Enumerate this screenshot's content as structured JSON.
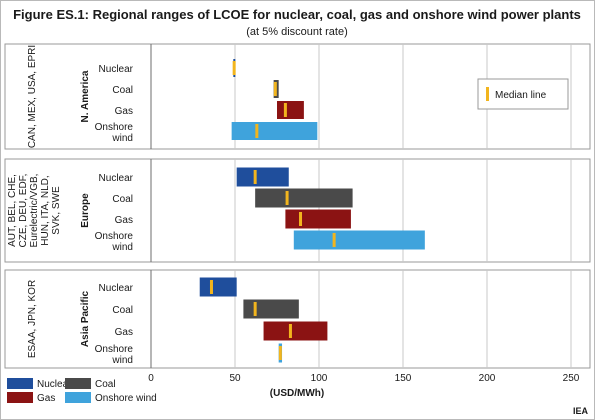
{
  "chart_data": {
    "type": "bar",
    "title": "Figure ES.1: Regional ranges of LCOE for nuclear, coal, gas and onshore wind power plants",
    "subtitle": "(at 5% discount rate)",
    "xlabel": "(USD/MWh)",
    "xlim": [
      0,
      250
    ],
    "xticks": [
      "0",
      "50",
      "100",
      "150",
      "200",
      "250"
    ],
    "grid": true,
    "technologies": [
      {
        "name": "Nuclear",
        "color": "#1f4e9c"
      },
      {
        "name": "Coal",
        "color": "#4a4a4a"
      },
      {
        "name": "Gas",
        "color": "#8b1313"
      },
      {
        "name": "Onshore wind",
        "color": "#3fa3dc"
      }
    ],
    "median_color": "#f2b51e",
    "median_legend": "Median line",
    "regions": [
      {
        "name": "N. America",
        "countries": "CAN, MEX, USA, EPRI",
        "rows": [
          {
            "label": "Nuclear",
            "min": 49,
            "max": 50,
            "median": 49.5
          },
          {
            "label": "Coal",
            "min": 73,
            "max": 76,
            "median": 74
          },
          {
            "label": "Gas",
            "min": 75,
            "max": 91,
            "median": 80
          },
          {
            "label": "Onshore wind",
            "min": 48,
            "max": 99,
            "median": 63
          }
        ]
      },
      {
        "name": "Europe",
        "countries": "AUT, BEL, CHE, CZE, DEU, EDF, Eurelectric/VGB, HUN, ITA, NLD, SVK, SWE",
        "rows": [
          {
            "label": "Nuclear",
            "min": 51,
            "max": 82,
            "median": 62
          },
          {
            "label": "Coal",
            "min": 62,
            "max": 120,
            "median": 81
          },
          {
            "label": "Gas",
            "min": 80,
            "max": 119,
            "median": 89
          },
          {
            "label": "Onshore wind",
            "min": 85,
            "max": 163,
            "median": 109
          }
        ]
      },
      {
        "name": "Asia Pacific",
        "countries": "ESAA, JPN, KOR",
        "rows": [
          {
            "label": "Nuclear",
            "min": 29,
            "max": 51,
            "median": 36
          },
          {
            "label": "Coal",
            "min": 55,
            "max": 88,
            "median": 62
          },
          {
            "label": "Gas",
            "min": 67,
            "max": 105,
            "median": 83
          },
          {
            "label": "Onshore wind",
            "min": 76,
            "max": 78,
            "median": 77
          }
        ]
      }
    ]
  },
  "legend": {
    "items": [
      "Nuclear",
      "Coal",
      "Gas",
      "Onshore wind"
    ]
  },
  "source": "IEA"
}
